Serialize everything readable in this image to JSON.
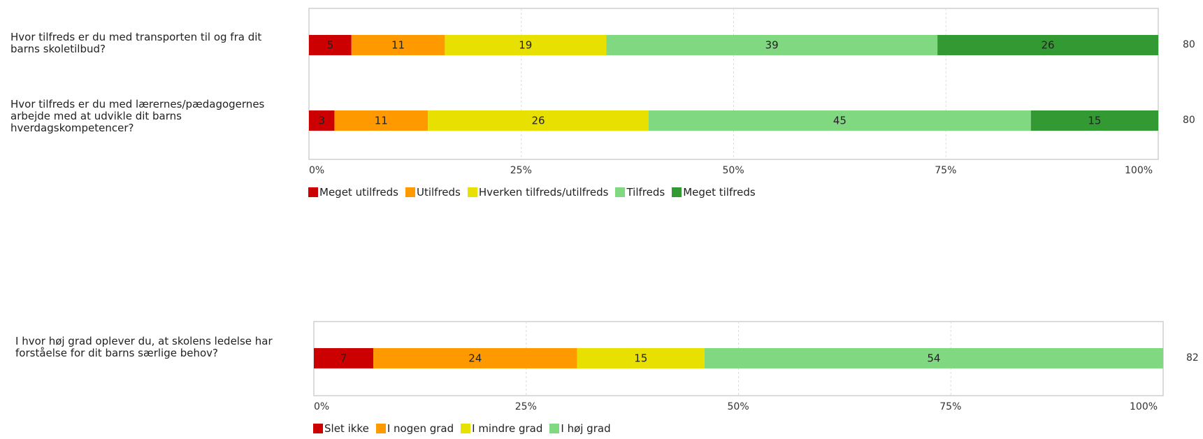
{
  "chart_data": [
    {
      "type": "bar",
      "orientation": "horizontal-stacked-100",
      "questions": [
        {
          "label": "Hvor tilfreds er du med transporten til og fra dit barns skoletilbud?",
          "total": "80"
        },
        {
          "label": "Hvor tilfreds er du med lærernes/pædagogernes arbejde med at udvikle dit barns hverdagskompetencer?",
          "total": "80"
        }
      ],
      "series": [
        {
          "name": "Meget utilfreds",
          "color": "#cc0000",
          "values": [
            5,
            3
          ]
        },
        {
          "name": "Utilfreds",
          "color": "#ff9900",
          "values": [
            11,
            11
          ]
        },
        {
          "name": "Hverken tilfreds/utilfreds",
          "color": "#e8e000",
          "values": [
            19,
            26
          ]
        },
        {
          "name": "Tilfreds",
          "color": "#80d880",
          "values": [
            39,
            45
          ]
        },
        {
          "name": "Meget tilfreds",
          "color": "#339933",
          "values": [
            26,
            15
          ]
        }
      ],
      "xticks": [
        "0%",
        "25%",
        "50%",
        "75%",
        "100%"
      ],
      "xlim": [
        0,
        100
      ],
      "grid": true,
      "legend_position": "bottom"
    },
    {
      "type": "bar",
      "orientation": "horizontal-stacked-100",
      "questions": [
        {
          "label": "I hvor høj grad oplever du, at skolens ledelse har forståelse for dit barns særlige behov?",
          "total": "82"
        }
      ],
      "series": [
        {
          "name": "Slet ikke",
          "color": "#cc0000",
          "values": [
            7
          ]
        },
        {
          "name": "I nogen grad",
          "color": "#ff9900",
          "values": [
            24
          ]
        },
        {
          "name": "I mindre grad",
          "color": "#e8e000",
          "values": [
            15
          ]
        },
        {
          "name": "I høj grad",
          "color": "#80d880",
          "values": [
            54
          ]
        }
      ],
      "xticks": [
        "0%",
        "25%",
        "50%",
        "75%",
        "100%"
      ],
      "xlim": [
        0,
        100
      ],
      "grid": true,
      "legend_position": "bottom"
    }
  ]
}
